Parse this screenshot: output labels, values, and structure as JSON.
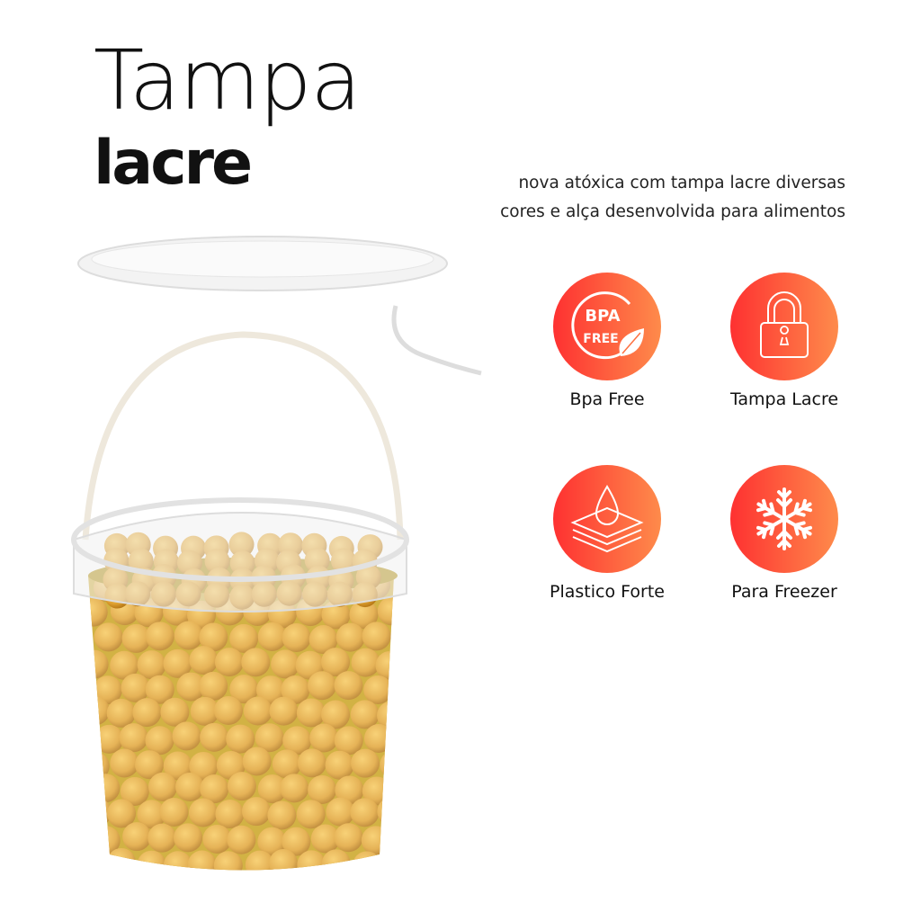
{
  "heading": {
    "line1": "Tampa",
    "line2": "lacre"
  },
  "description": {
    "line1": "nova atóxica com tampa lacre diversas",
    "line2": "cores e alça desenvolvida para alimentos"
  },
  "features": [
    {
      "label": "Bpa Free",
      "icon": "bpa-free-leaf-icon",
      "badge_text_1": "BPA",
      "badge_text_2": "FREE"
    },
    {
      "label": "Tampa Lacre",
      "icon": "padlock-icon"
    },
    {
      "label": "Plastico Forte",
      "icon": "water-drop-layers-icon"
    },
    {
      "label": "Para Freezer",
      "icon": "snowflake-icon"
    }
  ],
  "colors": {
    "gradient_start": "#fe3131",
    "gradient_end": "#fe8b4b",
    "chickpea": "#e0a232",
    "oil": "#c9a21c"
  }
}
